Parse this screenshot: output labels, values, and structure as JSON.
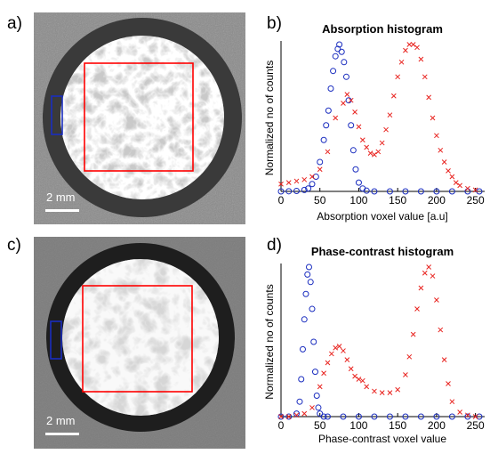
{
  "panels": {
    "a": "a)",
    "b": "b)",
    "c": "c)",
    "d": "d)"
  },
  "images": [
    {
      "id": "a",
      "scalebar": "2 mm",
      "background": "#8a8a8a",
      "ring": "#3a3a3a",
      "box_color": "#ff0000",
      "marker_color": "#1a2dbf"
    },
    {
      "id": "c",
      "scalebar": "2 mm",
      "background": "#7c7c7c",
      "ring": "#1e1e1e",
      "box_color": "#ff0000",
      "marker_color": "#1a2dbf"
    }
  ],
  "chart_data": [
    {
      "type": "scatter",
      "title": "Absorption histogram",
      "xlabel": "Absorption voxel value [a.u]",
      "ylabel": "Normalized no of counts",
      "xlim": [
        0,
        255
      ],
      "xticks": [
        0,
        50,
        100,
        150,
        200,
        250
      ],
      "series": [
        {
          "marker": "circle",
          "color": "#1a2dbf",
          "x": [
            0,
            10,
            20,
            30,
            35,
            40,
            45,
            50,
            55,
            58,
            61,
            64,
            67,
            70,
            73,
            75,
            78,
            81,
            84,
            87,
            90,
            93,
            96,
            100,
            105,
            110,
            120,
            140,
            160,
            180,
            200,
            220,
            240,
            255
          ],
          "y": [
            0,
            0.001,
            0.003,
            0.01,
            0.02,
            0.05,
            0.1,
            0.2,
            0.35,
            0.45,
            0.55,
            0.7,
            0.82,
            0.92,
            0.97,
            1.0,
            0.95,
            0.88,
            0.78,
            0.62,
            0.45,
            0.28,
            0.15,
            0.06,
            0.02,
            0.005,
            0,
            0,
            0,
            0,
            0,
            0,
            0,
            0
          ]
        },
        {
          "marker": "x",
          "color": "#e8231f",
          "x": [
            0,
            10,
            20,
            30,
            40,
            50,
            60,
            70,
            80,
            85,
            90,
            95,
            100,
            105,
            110,
            115,
            120,
            125,
            130,
            135,
            140,
            145,
            150,
            155,
            160,
            165,
            170,
            175,
            180,
            185,
            190,
            195,
            200,
            205,
            210,
            215,
            220,
            225,
            230,
            240,
            250
          ],
          "y": [
            0.05,
            0.06,
            0.07,
            0.08,
            0.1,
            0.15,
            0.27,
            0.5,
            0.6,
            0.66,
            0.62,
            0.54,
            0.44,
            0.35,
            0.3,
            0.26,
            0.25,
            0.27,
            0.33,
            0.42,
            0.52,
            0.65,
            0.78,
            0.88,
            0.96,
            1.0,
            1.0,
            0.98,
            0.9,
            0.78,
            0.64,
            0.5,
            0.38,
            0.28,
            0.2,
            0.14,
            0.1,
            0.06,
            0.04,
            0.02,
            0.01
          ]
        }
      ]
    },
    {
      "type": "scatter",
      "title": "Phase-contrast histogram",
      "xlabel": "Phase-contrast voxel value",
      "ylabel": "Normalized no of counts",
      "xlim": [
        0,
        255
      ],
      "xticks": [
        0,
        50,
        100,
        150,
        200,
        250
      ],
      "series": [
        {
          "marker": "circle",
          "color": "#1a2dbf",
          "x": [
            0,
            10,
            20,
            24,
            26,
            28,
            30,
            32,
            34,
            36,
            38,
            40,
            42,
            44,
            46,
            48,
            50,
            55,
            60,
            80,
            100,
            120,
            140,
            160,
            180,
            200,
            220,
            240,
            255
          ],
          "y": [
            0,
            0,
            0.02,
            0.1,
            0.25,
            0.45,
            0.65,
            0.82,
            0.95,
            1.0,
            0.9,
            0.72,
            0.5,
            0.3,
            0.14,
            0.06,
            0.02,
            0,
            0,
            0,
            0,
            0,
            0,
            0,
            0,
            0,
            0,
            0,
            0
          ]
        },
        {
          "marker": "x",
          "color": "#e8231f",
          "x": [
            0,
            10,
            20,
            30,
            40,
            50,
            55,
            60,
            65,
            70,
            75,
            80,
            85,
            90,
            95,
            100,
            105,
            110,
            120,
            130,
            140,
            150,
            160,
            165,
            170,
            175,
            180,
            185,
            190,
            195,
            200,
            205,
            210,
            215,
            220,
            230,
            240,
            250
          ],
          "y": [
            0,
            0,
            0.01,
            0.02,
            0.06,
            0.2,
            0.29,
            0.36,
            0.42,
            0.46,
            0.47,
            0.44,
            0.38,
            0.32,
            0.27,
            0.25,
            0.24,
            0.2,
            0.17,
            0.16,
            0.16,
            0.18,
            0.28,
            0.4,
            0.55,
            0.72,
            0.86,
            0.96,
            1.0,
            0.94,
            0.78,
            0.58,
            0.38,
            0.22,
            0.1,
            0.03,
            0.01,
            0
          ]
        }
      ]
    }
  ]
}
